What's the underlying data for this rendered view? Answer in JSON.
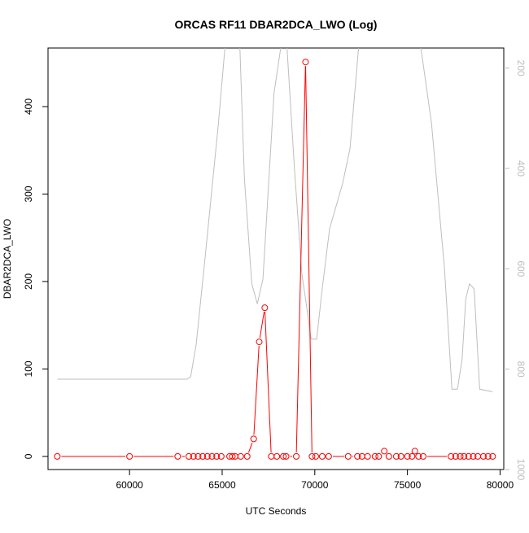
{
  "chart_data": {
    "type": "line",
    "title": "ORCAS RF11 DBAR2DCA_LWO (Log)",
    "xlabel": "UTC Seconds",
    "ylabel": "DBAR2DCA_LWO",
    "xlim": [
      55600,
      80200
    ],
    "ylim": [
      -15,
      467
    ],
    "y2lim": [
      1000,
      160
    ],
    "y2_reversed": true,
    "grid": false,
    "colors": {
      "primary": "#ff0000",
      "secondary": "#bebebe",
      "axis": "#000000",
      "axis2": "#bebebe"
    },
    "x_ticks": [
      {
        "value": 60000,
        "label": "60000"
      },
      {
        "value": 65000,
        "label": "65000"
      },
      {
        "value": 70000,
        "label": "70000"
      },
      {
        "value": 75000,
        "label": "75000"
      },
      {
        "value": 80000,
        "label": "80000"
      }
    ],
    "y_ticks": [
      {
        "value": 0,
        "label": "0"
      },
      {
        "value": 100,
        "label": "100"
      },
      {
        "value": 200,
        "label": "200"
      },
      {
        "value": 300,
        "label": "300"
      },
      {
        "value": 400,
        "label": "400"
      }
    ],
    "y2_ticks": [
      {
        "value": 200,
        "label": "200"
      },
      {
        "value": 400,
        "label": "400"
      },
      {
        "value": 600,
        "label": "600"
      },
      {
        "value": 800,
        "label": "800"
      },
      {
        "value": 1000,
        "label": "1000"
      }
    ],
    "series": [
      {
        "axis": "left",
        "marker": "open-circle",
        "x": [
          56100,
          60000,
          62600,
          63200,
          63450,
          63700,
          63950,
          64200,
          64450,
          64700,
          64950,
          65400,
          65550,
          65700,
          66000,
          66350,
          66700,
          67000,
          67300,
          67650,
          67950,
          68300,
          68450,
          69000,
          69500,
          69850,
          70050,
          70400,
          70750,
          71800,
          72300,
          72550,
          72850,
          73250,
          73450,
          73750,
          74000,
          74400,
          74650,
          75000,
          75250,
          75400,
          75600,
          75850,
          77350,
          77600,
          77850,
          78050,
          78300,
          78550,
          78800,
          79100,
          79350,
          79600
        ],
        "y": [
          0,
          0,
          0,
          0,
          0,
          0,
          0,
          0,
          0,
          0,
          0,
          0,
          0,
          0,
          0,
          0,
          20,
          131,
          170,
          0,
          0,
          0,
          0,
          0,
          451,
          0,
          0,
          0,
          0,
          0,
          0,
          0,
          0,
          0,
          0,
          6,
          0,
          0,
          0,
          0,
          0,
          6,
          0,
          0,
          0,
          0,
          0,
          0,
          0,
          0,
          0,
          0,
          0,
          0
        ]
      },
      {
        "axis": "right",
        "marker": "none",
        "x": [
          56100,
          62000,
          63100,
          63300,
          63600,
          64100,
          64800,
          65100,
          65300,
          65900,
          66200,
          66600,
          66900,
          67200,
          67800,
          68400,
          68900,
          69300,
          69500,
          69800,
          70100,
          70400,
          70800,
          71500,
          71900,
          72500,
          73300,
          74300,
          75500,
          76300,
          77000,
          77400,
          77700,
          77950,
          78150,
          78350,
          78600,
          78900,
          79600
        ],
        "y": [
          820,
          820,
          820,
          815,
          750,
          570,
          310,
          180,
          100,
          100,
          420,
          630,
          670,
          620,
          250,
          100,
          400,
          610,
          660,
          740,
          740,
          640,
          520,
          430,
          360,
          100,
          100,
          100,
          100,
          310,
          600,
          840,
          840,
          780,
          660,
          630,
          640,
          840,
          845
        ]
      }
    ]
  }
}
